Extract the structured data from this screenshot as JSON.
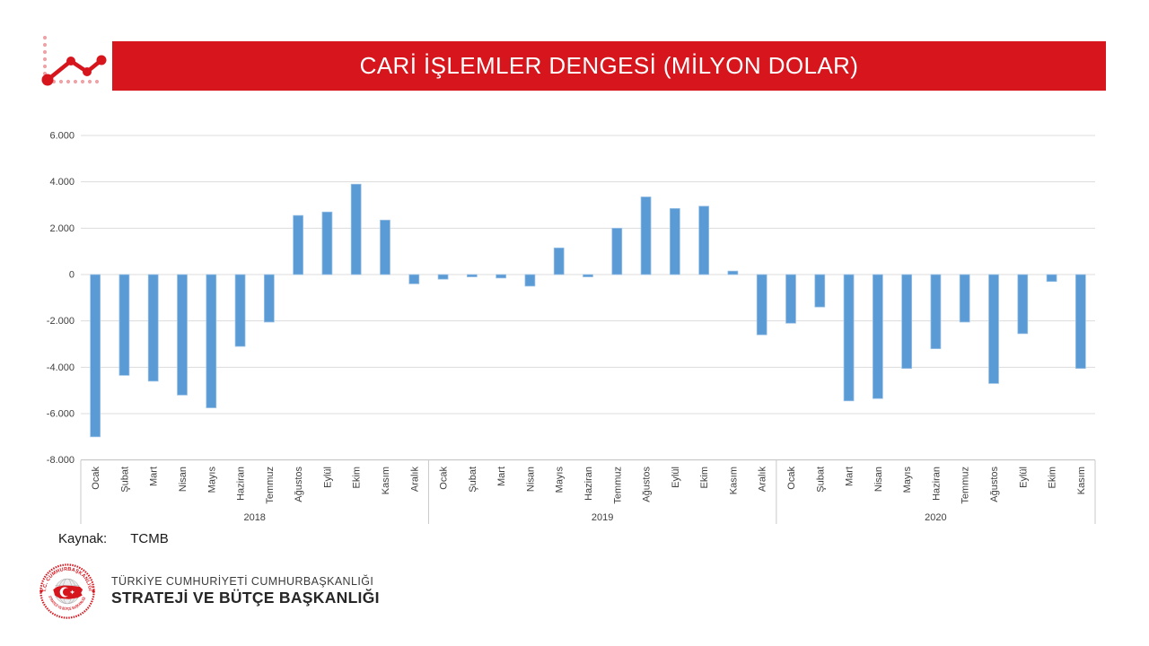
{
  "title": "CARİ İŞLEMLER DENGESİ (MİLYON DOLAR)",
  "source": {
    "label": "Kaynak:",
    "value": "TCMB"
  },
  "footer": {
    "org_line1": "TÜRKİYE CUMHURİYETİ CUMHURBAŞKANLIĞI",
    "org_line2": "STRATEJİ VE BÜTÇE BAŞKANLIĞI",
    "emblem_top_text": "T.C. CUMHURBAŞKANLIĞI",
    "emblem_bottom_text": "STRATEJİ VE BÜTÇE BAŞKANLIĞI"
  },
  "colors": {
    "banner_red": "#D6151D",
    "bar_blue": "#5B9BD5",
    "bar_edge": "#9DC3E6",
    "gridline": "#DCDCDC",
    "axis_line": "#BFBFBF",
    "separator": "#C9C9C9",
    "label_gray": "#404040"
  },
  "chart_data": {
    "type": "bar",
    "title": "CARİ İŞLEMLER DENGESİ (MİLYON DOLAR)",
    "unit": "milyon dolar",
    "ylim": [
      -8000,
      6000
    ],
    "grid": true,
    "legend": "none",
    "yticks": [
      {
        "label": "6.000",
        "value": 6000
      },
      {
        "label": "4.000",
        "value": 4000
      },
      {
        "label": "2.000",
        "value": 2000
      },
      {
        "label": "0",
        "value": 0
      },
      {
        "label": "-2.000",
        "value": -2000
      },
      {
        "label": "-4.000",
        "value": -4000
      },
      {
        "label": "-6.000",
        "value": -6000
      },
      {
        "label": "-8.000",
        "value": -8000
      }
    ],
    "groups": [
      {
        "year": "2018",
        "months": [
          "Ocak",
          "Şubat",
          "Mart",
          "Nisan",
          "Mayıs",
          "Haziran",
          "Temmuz",
          "Ağustos",
          "Eylül",
          "Ekim",
          "Kasım",
          "Aralık"
        ],
        "values": [
          -7000,
          -4350,
          -4600,
          -5200,
          -5750,
          -3100,
          -2050,
          2550,
          2700,
          3900,
          2350,
          -400
        ]
      },
      {
        "year": "2019",
        "months": [
          "Ocak",
          "Şubat",
          "Mart",
          "Nisan",
          "Mayıs",
          "Haziran",
          "Temmuz",
          "Ağustos",
          "Eylül",
          "Ekim",
          "Kasım",
          "Aralık"
        ],
        "values": [
          -200,
          -100,
          -150,
          -500,
          1150,
          -100,
          2000,
          3350,
          2850,
          2950,
          150,
          -2600
        ]
      },
      {
        "year": "2020",
        "months": [
          "Ocak",
          "Şubat",
          "Mart",
          "Nisan",
          "Mayıs",
          "Haziran",
          "Temmuz",
          "Ağustos",
          "Eylül",
          "Ekim",
          "Kasım"
        ],
        "values": [
          -2100,
          -1400,
          -5450,
          -5350,
          -4050,
          -3200,
          -2050,
          -4700,
          -2550,
          -300,
          -4050
        ]
      }
    ]
  }
}
